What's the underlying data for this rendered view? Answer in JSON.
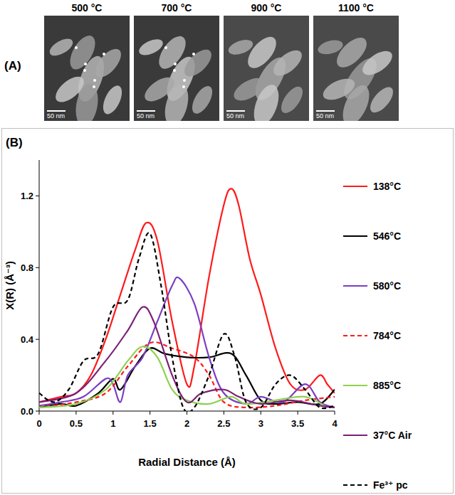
{
  "micrographs": {
    "label": "(A)",
    "images": [
      {
        "title": "500 °C",
        "scale_bar": "50 nm"
      },
      {
        "title": "700 °C",
        "scale_bar": "50 nm"
      },
      {
        "title": "900 °C",
        "scale_bar": "50 nm"
      },
      {
        "title": "1100 °C",
        "scale_bar": "50 nm"
      }
    ]
  },
  "chart_data": {
    "type": "line",
    "annotations": [
      "(B)"
    ],
    "x_label": "Radial Distance (Å)",
    "y_label": "X(R) (Å⁻³)",
    "xlim": [
      0,
      4
    ],
    "xticks": [
      0,
      0.5,
      1,
      1.5,
      2,
      2.5,
      3,
      3.5,
      4
    ],
    "ylim": [
      0,
      1.4
    ],
    "yticks": [
      {
        "value": 0,
        "label": "0.0"
      },
      {
        "value": 0.4,
        "label": "0.4"
      },
      {
        "value": 0.8,
        "label": "0.8"
      },
      {
        "value": 1.2,
        "label": "1.2"
      }
    ],
    "grid": false,
    "legend": "right",
    "series": [
      {
        "name": "138°C",
        "color": "#ff1a1a",
        "line_style": "solid",
        "x": [
          0,
          0.3,
          0.5,
          0.7,
          0.9,
          1.1,
          1.3,
          1.45,
          1.6,
          1.8,
          2.0,
          2.1,
          2.3,
          2.5,
          2.6,
          2.7,
          2.85,
          3.0,
          3.2,
          3.4,
          3.6,
          3.8,
          3.9,
          4.0
        ],
        "values": [
          0.05,
          0.08,
          0.1,
          0.2,
          0.4,
          0.65,
          0.9,
          1.05,
          0.95,
          0.5,
          0.15,
          0.25,
          0.75,
          1.15,
          1.24,
          1.15,
          0.85,
          0.65,
          0.35,
          0.15,
          0.12,
          0.2,
          0.15,
          0.1
        ]
      },
      {
        "name": "546°C",
        "color": "#000000",
        "line_style": "solid",
        "x": [
          0,
          0.3,
          0.5,
          0.8,
          1.0,
          1.1,
          1.3,
          1.5,
          1.7,
          2.0,
          2.3,
          2.6,
          2.8,
          3.0,
          3.2,
          3.5,
          3.8,
          4.0
        ],
        "values": [
          0.02,
          0.04,
          0.03,
          0.1,
          0.18,
          0.12,
          0.25,
          0.35,
          0.32,
          0.3,
          0.3,
          0.32,
          0.2,
          0.06,
          0.04,
          0.05,
          0.04,
          0.12
        ]
      },
      {
        "name": "580°C",
        "color": "#7a3fc0",
        "line_style": "solid",
        "x": [
          0,
          0.3,
          0.6,
          0.9,
          1.0,
          1.1,
          1.2,
          1.4,
          1.6,
          1.8,
          1.9,
          2.1,
          2.3,
          2.5,
          2.8,
          3.0,
          3.3,
          3.6,
          3.8,
          4.0
        ],
        "values": [
          0.03,
          0.05,
          0.08,
          0.18,
          0.15,
          0.05,
          0.2,
          0.3,
          0.5,
          0.7,
          0.74,
          0.6,
          0.3,
          0.1,
          0.04,
          0.08,
          0.05,
          0.15,
          0.05,
          0.02
        ]
      },
      {
        "name": "784°C",
        "color": "#ff1a1a",
        "line_style": "dashed",
        "x": [
          0,
          0.5,
          0.9,
          1.2,
          1.5,
          1.8,
          2.1,
          2.3,
          2.5,
          2.8,
          3.2,
          3.6,
          4.0
        ],
        "values": [
          0.02,
          0.05,
          0.1,
          0.25,
          0.38,
          0.35,
          0.3,
          0.2,
          0.05,
          0.02,
          0.03,
          0.06,
          0.08
        ]
      },
      {
        "name": "885°C",
        "color": "#8fd14f",
        "line_style": "solid",
        "x": [
          0,
          0.5,
          0.9,
          1.2,
          1.4,
          1.6,
          1.8,
          2.0,
          2.3,
          2.6,
          2.8,
          3.2,
          3.6,
          3.9
        ],
        "values": [
          0.02,
          0.04,
          0.12,
          0.28,
          0.36,
          0.3,
          0.12,
          0.06,
          0.04,
          0.08,
          0.04,
          0.06,
          0.08,
          0.02
        ]
      },
      {
        "name": "37°C Air",
        "color": "#7b2078",
        "line_style": "solid",
        "x": [
          0,
          0.5,
          0.9,
          1.2,
          1.4,
          1.55,
          1.8,
          2.0,
          2.2,
          2.5,
          2.7,
          3.0,
          3.4,
          3.8,
          4.0
        ],
        "values": [
          0.05,
          0.1,
          0.28,
          0.45,
          0.58,
          0.5,
          0.2,
          0.05,
          0.1,
          0.12,
          0.08,
          0.04,
          0.06,
          0.03,
          0.02
        ]
      },
      {
        "name": "Fe³⁺ pc",
        "color": "#000000",
        "line_style": "dashed",
        "x": [
          0,
          0.2,
          0.4,
          0.6,
          0.8,
          1.0,
          1.2,
          1.35,
          1.5,
          1.65,
          1.8,
          1.95,
          2.1,
          2.3,
          2.5,
          2.65,
          2.8,
          3.0,
          3.2,
          3.4,
          3.6,
          3.8,
          4.0
        ],
        "values": [
          0.1,
          0.05,
          0.12,
          0.28,
          0.32,
          0.58,
          0.62,
          0.85,
          0.99,
          0.7,
          0.3,
          0.02,
          0.02,
          0.2,
          0.43,
          0.3,
          0.05,
          0.02,
          0.15,
          0.2,
          0.12,
          0.02,
          0.03
        ]
      }
    ]
  }
}
